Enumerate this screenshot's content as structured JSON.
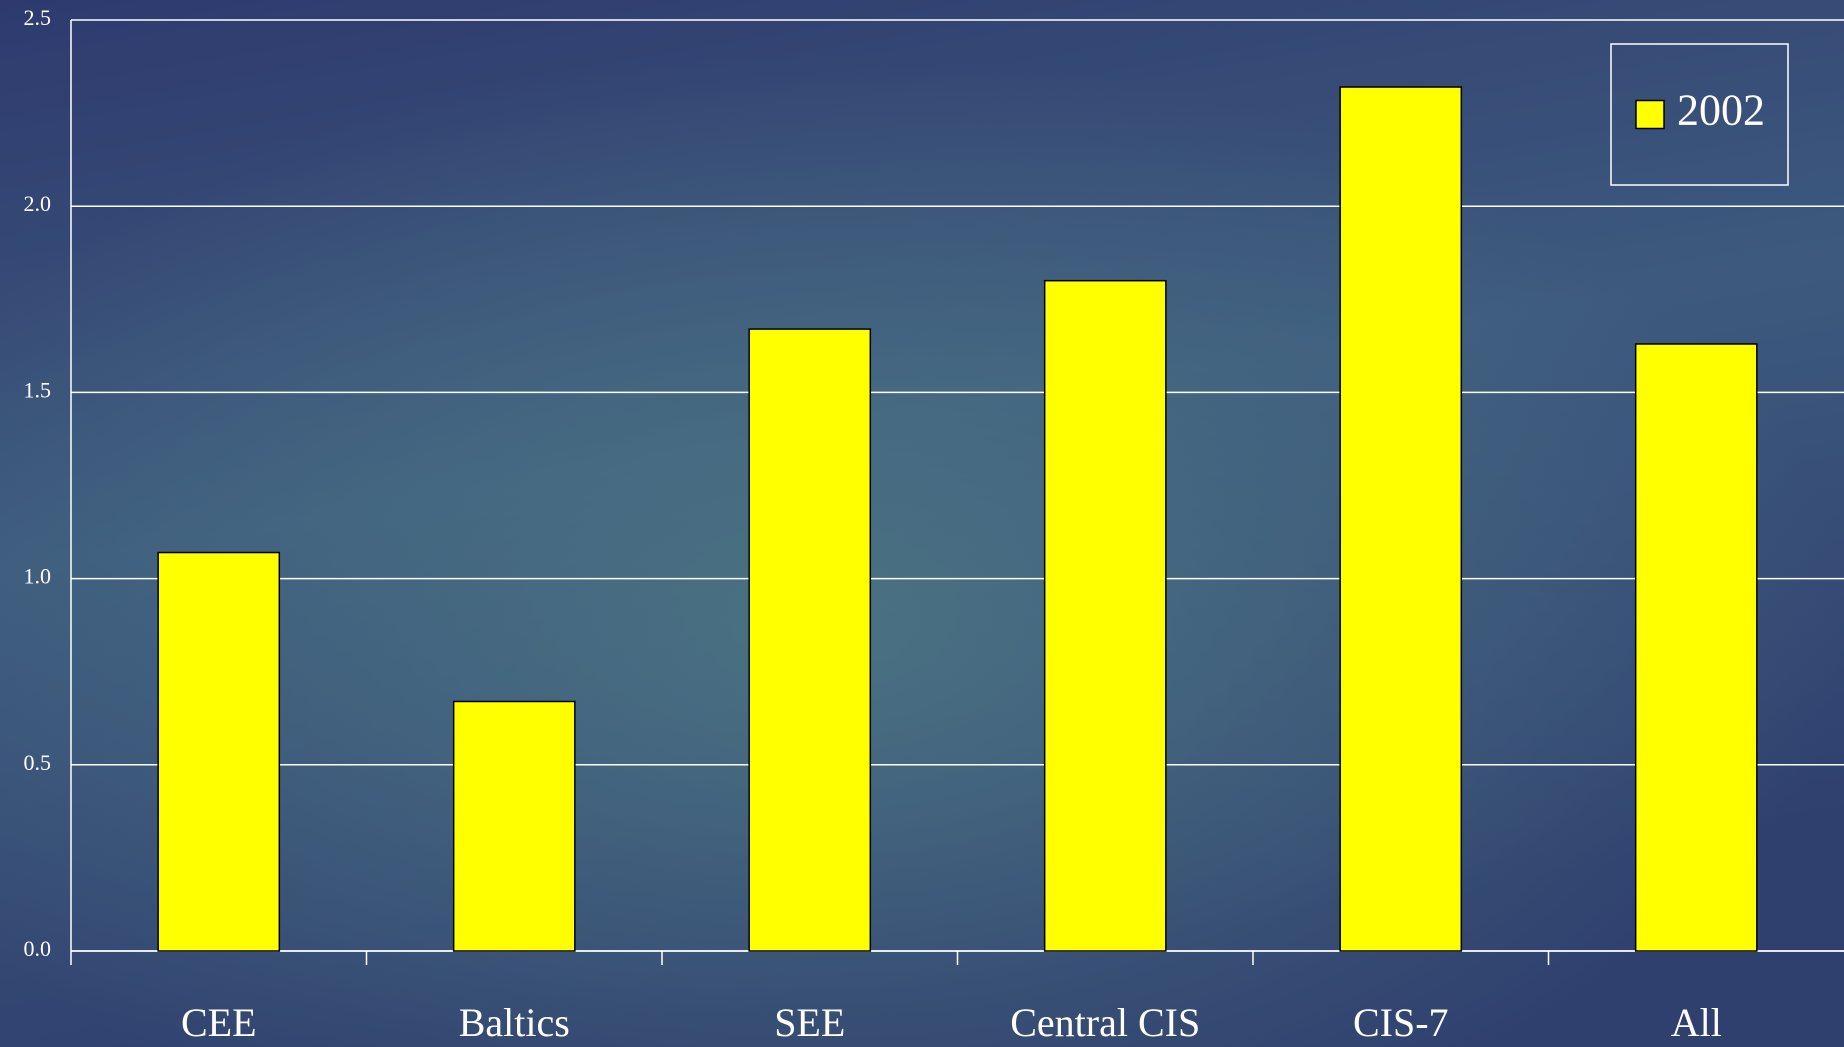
{
  "chart_data": {
    "type": "bar",
    "categories": [
      "CEE",
      "Baltics",
      "SEE",
      "Central CIS",
      "CIS-7",
      "All"
    ],
    "series": [
      {
        "name": "2002",
        "color": "#ffff00",
        "values": [
          1.07,
          0.67,
          1.67,
          1.8,
          2.32,
          1.63
        ]
      }
    ],
    "ylim": [
      0,
      2.5
    ],
    "yticks": [
      {
        "value": 0,
        "label": "0.0"
      },
      0.5,
      {
        "value": 1,
        "label": "1.0"
      },
      1.5,
      {
        "value": 2,
        "label": "2.0"
      },
      2.5
    ],
    "grid": true,
    "legend": "upper right"
  }
}
